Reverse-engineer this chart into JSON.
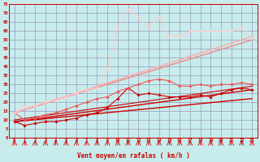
{
  "background_color": "#c8ecec",
  "grid_color": "#9999bb",
  "xlabel": "Vent moyen/en rafales ( km/h )",
  "xlim": [
    -0.5,
    23.5
  ],
  "ylim": [
    0,
    75
  ],
  "ytick_vals": [
    0,
    5,
    10,
    15,
    20,
    25,
    30,
    35,
    40,
    45,
    50,
    55,
    60,
    65,
    70,
    75
  ],
  "xtick_vals": [
    0,
    1,
    2,
    3,
    4,
    5,
    6,
    7,
    8,
    9,
    10,
    11,
    12,
    13,
    14,
    15,
    16,
    17,
    18,
    19,
    20,
    21,
    22,
    23
  ],
  "lines": [
    {
      "x": [
        0,
        1,
        2,
        3,
        4,
        5,
        6,
        7,
        8,
        9,
        10,
        11,
        12,
        13,
        14,
        15,
        16,
        17,
        18,
        19,
        20,
        21,
        22,
        23
      ],
      "y": [
        9,
        7,
        8,
        9,
        9,
        10,
        11,
        13,
        14,
        17,
        22,
        28,
        24,
        25,
        24,
        23,
        23,
        23,
        24,
        23,
        25,
        27,
        28,
        27
      ],
      "color": "#cc0000",
      "lw": 0.8,
      "marker": "D",
      "ms": 1.8
    },
    {
      "x": [
        0,
        23
      ],
      "y": [
        9,
        27
      ],
      "color": "#cc0000",
      "lw": 1.0,
      "marker": null,
      "ms": 0
    },
    {
      "x": [
        0,
        23
      ],
      "y": [
        9,
        22
      ],
      "color": "#cc0000",
      "lw": 1.0,
      "marker": null,
      "ms": 0
    },
    {
      "x": [
        0,
        23
      ],
      "y": [
        10,
        29
      ],
      "color": "#cc0000",
      "lw": 0.8,
      "marker": null,
      "ms": 0
    },
    {
      "x": [
        0,
        1,
        2,
        3,
        4,
        5,
        6,
        7,
        8,
        9,
        10,
        11,
        12,
        13,
        14,
        15,
        16,
        17,
        18,
        19,
        20,
        21,
        22,
        23
      ],
      "y": [
        14,
        10,
        11,
        13,
        14,
        16,
        18,
        20,
        22,
        23,
        26,
        28,
        30,
        32,
        33,
        32,
        29,
        29,
        30,
        29,
        30,
        30,
        31,
        30
      ],
      "color": "#ee5555",
      "lw": 0.8,
      "marker": "D",
      "ms": 1.8
    },
    {
      "x": [
        0,
        23
      ],
      "y": [
        14,
        55
      ],
      "color": "#ee8888",
      "lw": 1.0,
      "marker": null,
      "ms": 0
    },
    {
      "x": [
        0,
        23
      ],
      "y": [
        14,
        57
      ],
      "color": "#ffaaaa",
      "lw": 1.0,
      "marker": null,
      "ms": 0
    },
    {
      "x": [
        0,
        1,
        2,
        3,
        4,
        5,
        6,
        7,
        8,
        9,
        10,
        11,
        12,
        13,
        14,
        15,
        16,
        17,
        18,
        19,
        20,
        21,
        22,
        23
      ],
      "y": [
        14,
        18,
        18,
        20,
        21,
        23,
        25,
        27,
        28,
        38,
        62,
        72,
        68,
        62,
        68,
        57,
        57,
        60,
        60,
        60,
        60,
        60,
        62,
        56
      ],
      "color": "#ffcccc",
      "lw": 0.8,
      "marker": "D",
      "ms": 1.8
    }
  ]
}
